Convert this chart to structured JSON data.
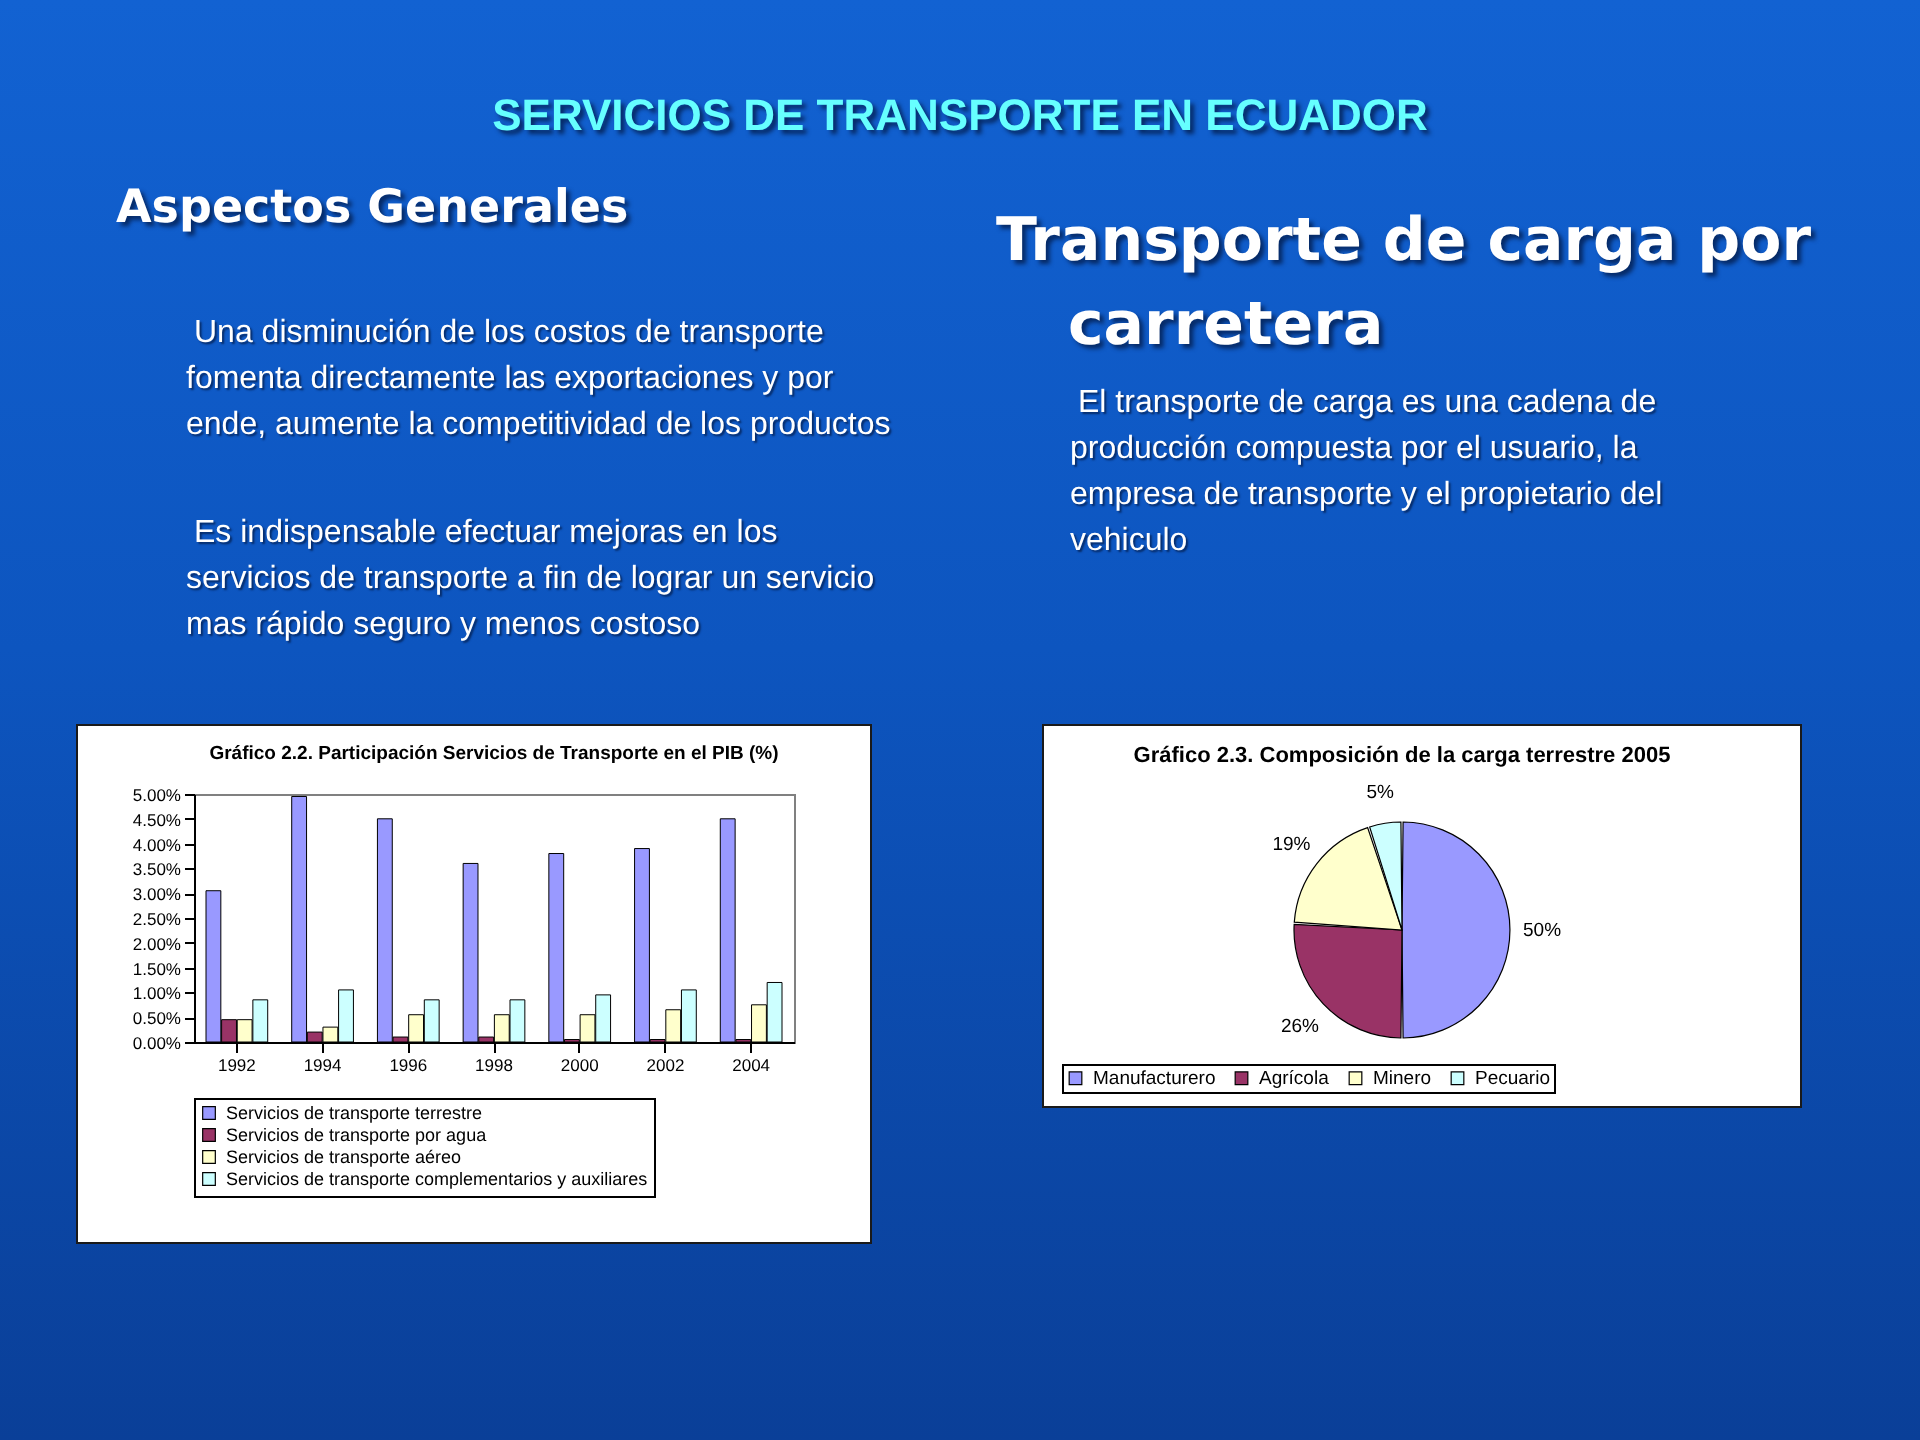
{
  "chart_data": [
    {
      "type": "other",
      "title": "SERVICIOS DE TRANSPORTE EN ECUADOR"
    },
    {
      "type": "other",
      "title": "Aspectos Generales",
      "annotations": [
        "Una disminución de los costos de transporte fomenta directamente las exportaciones y por ende, aumente la competitividad de los productos",
        "Es indispensable efectuar mejoras en los servicios de transporte a fin de lograr un servicio mas rápido seguro y menos costoso"
      ]
    },
    {
      "type": "other",
      "title": "Transporte de carga por carretera",
      "annotations": [
        "El transporte de carga es una cadena de producción compuesta por el usuario, la empresa de transporte y el propietario del vehiculo"
      ]
    },
    {
      "type": "bar",
      "title": "Gráfico 2.2. Participación Servicios de Transporte en el PIB (%)",
      "categories": [
        "1992",
        "1994",
        "1996",
        "1998",
        "2000",
        "2002",
        "2004"
      ],
      "series": [
        {
          "name": "Servicios de transporte terrestre",
          "color": "#9999ff",
          "values": [
            3.05,
            4.95,
            4.5,
            3.6,
            3.8,
            3.9,
            4.5
          ]
        },
        {
          "name": "Servicios de transporte por agua",
          "color": "#993366",
          "values": [
            0.45,
            0.2,
            0.1,
            0.1,
            0.05,
            0.05,
            0.05
          ]
        },
        {
          "name": "Servicios de transporte aéreo",
          "color": "#ffffcc",
          "values": [
            0.45,
            0.3,
            0.55,
            0.55,
            0.55,
            0.65,
            0.75
          ]
        },
        {
          "name": "Servicios de transporte complementarios y auxiliares",
          "color": "#ccffff",
          "values": [
            0.85,
            1.05,
            0.85,
            0.85,
            0.95,
            1.05,
            1.2
          ]
        }
      ],
      "ylim": [
        0,
        5
      ],
      "yticks": [
        {
          "value": 0,
          "label": "0.00%"
        },
        {
          "value": 0.5,
          "label": "0.50%"
        },
        {
          "value": 1,
          "label": "1.00%"
        },
        {
          "value": 1.5,
          "label": "1.50%"
        },
        {
          "value": 2,
          "label": "2.00%"
        },
        {
          "value": 2.5,
          "label": "2.50%"
        },
        {
          "value": 3,
          "label": "3.00%"
        },
        {
          "value": 3.5,
          "label": "3.50%"
        },
        {
          "value": 4,
          "label": "4.00%"
        },
        {
          "value": 4.5,
          "label": "4.50%"
        },
        {
          "value": 5,
          "label": "5.00%"
        }
      ],
      "grid": false,
      "legend": "bottom"
    },
    {
      "type": "pie",
      "title": "Gráfico 2.3. Composición de la carga terrestre 2005",
      "categories": [
        "Manufacturero",
        "Agrícola",
        "Minero",
        "Pecuario"
      ],
      "values": [
        50,
        26,
        19,
        5
      ],
      "colors": [
        "#9999ff",
        "#993366",
        "#ffffcc",
        "#ccffff"
      ],
      "value_labels": [
        "50%",
        "26%",
        "19%",
        "5%"
      ],
      "legend": "bottom"
    }
  ]
}
